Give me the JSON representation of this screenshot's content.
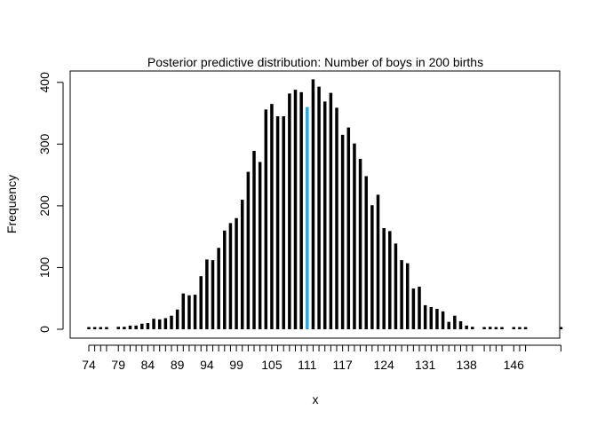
{
  "chart_data": {
    "type": "bar",
    "title": "Posterior predictive distribution: Number of boys in 200 births",
    "xlabel": "x",
    "ylabel": "Frequency",
    "ylim": [
      0,
      400
    ],
    "yticks": [
      "0",
      "100",
      "200",
      "300",
      "400"
    ],
    "xtick_labels": [
      "74",
      "79",
      "84",
      "89",
      "94",
      "99",
      "105",
      "111",
      "117",
      "124",
      "131",
      "138",
      "146"
    ],
    "grid": false,
    "legend": "none",
    "highlight_x": 111,
    "colors": {
      "bar": "#000000",
      "highlight": "#29a9e0"
    },
    "x": [
      74,
      75,
      76,
      77,
      79,
      80,
      81,
      82,
      83,
      84,
      85,
      86,
      87,
      88,
      89,
      90,
      91,
      92,
      93,
      94,
      95,
      96,
      97,
      98,
      99,
      100,
      101,
      102,
      103,
      104,
      105,
      106,
      107,
      108,
      109,
      110,
      111,
      112,
      113,
      114,
      115,
      116,
      117,
      118,
      119,
      120,
      121,
      122,
      123,
      124,
      125,
      126,
      127,
      128,
      129,
      130,
      131,
      132,
      133,
      134,
      135,
      136,
      137,
      138,
      139,
      141,
      142,
      143,
      144,
      146,
      147,
      148,
      154
    ],
    "values": [
      1,
      1,
      1,
      1,
      4,
      4,
      6,
      6,
      9,
      10,
      17,
      16,
      18,
      22,
      32,
      58,
      55,
      56,
      86,
      113,
      112,
      132,
      160,
      172,
      180,
      210,
      255,
      289,
      271,
      356,
      365,
      345,
      345,
      382,
      388,
      384,
      360,
      405,
      393,
      369,
      383,
      359,
      315,
      327,
      301,
      276,
      248,
      201,
      218,
      164,
      159,
      139,
      112,
      107,
      66,
      69,
      39,
      36,
      33,
      29,
      12,
      22,
      13,
      6,
      4,
      1,
      4,
      2,
      2,
      1,
      1,
      1,
      1
    ]
  }
}
